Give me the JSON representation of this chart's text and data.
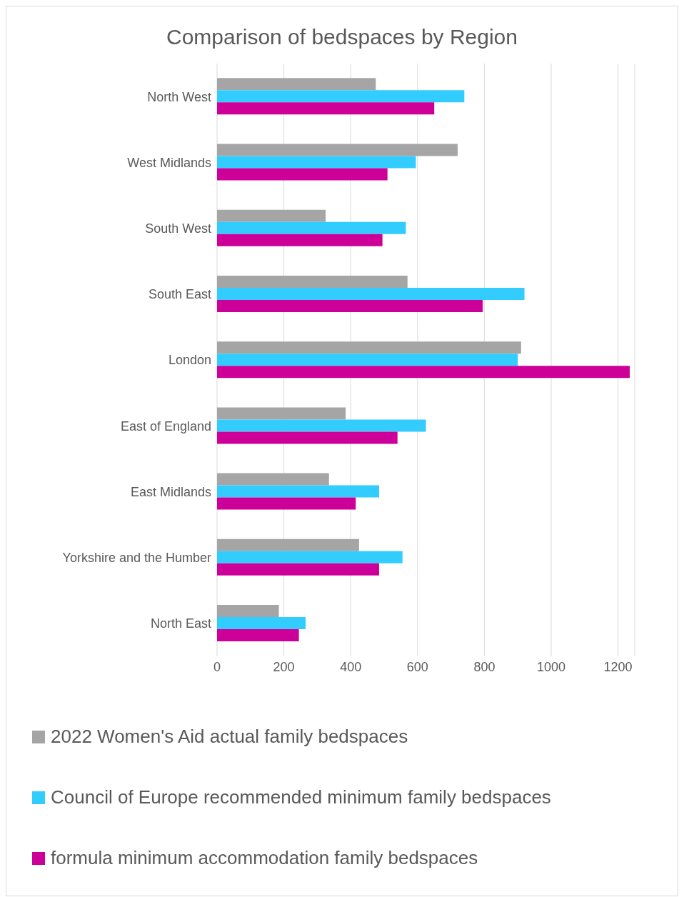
{
  "chart_data": {
    "type": "bar",
    "orientation": "horizontal",
    "title": "Comparison of bedspaces by Region",
    "categories": [
      "North West",
      "West Midlands",
      "South West",
      "South East",
      "London",
      "East of England",
      "East Midlands",
      "Yorkshire and the Humber",
      "North East"
    ],
    "series": [
      {
        "name": "2022 Women's Aid actual family bedspaces",
        "color": "#a5a5a5",
        "values": [
          475,
          720,
          325,
          570,
          910,
          385,
          335,
          425,
          185
        ]
      },
      {
        "name": "Council of Europe recommended minimum family bedspaces",
        "color": "#33ccff",
        "values": [
          740,
          595,
          565,
          920,
          900,
          625,
          485,
          555,
          265
        ]
      },
      {
        "name": "formula minimum accommodation family bedspaces",
        "color": "#cc0099",
        "values": [
          650,
          510,
          495,
          795,
          1235,
          540,
          415,
          485,
          245
        ]
      }
    ],
    "xlim": [
      0,
      1250
    ],
    "xticks": [
      0,
      200,
      400,
      600,
      800,
      1000,
      1200
    ],
    "grid": "x",
    "legend": "bottom"
  }
}
